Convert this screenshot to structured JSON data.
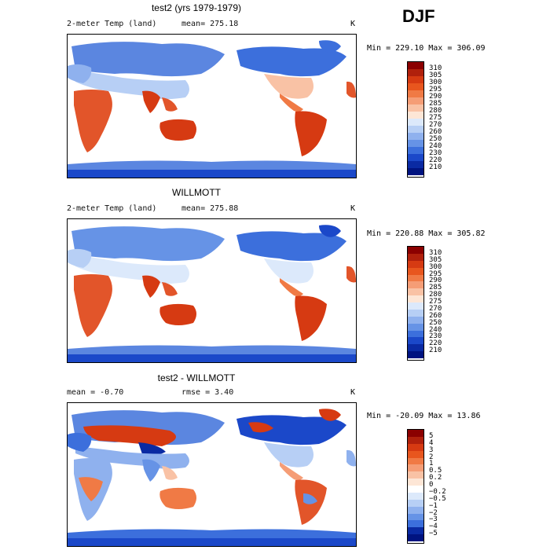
{
  "season": "DJF",
  "panels": [
    {
      "title": "test2 (yrs 1979-1979)",
      "subtitle_left": "2-meter Temp (land)",
      "subtitle_mid": "mean= 275.18",
      "unit": "K",
      "minmax": "Min = 229.10 Max = 306.09",
      "colorbar_labels": [
        "310",
        "305",
        "300",
        "295",
        "290",
        "285",
        "280",
        "275",
        "270",
        "260",
        "250",
        "240",
        "230",
        "220",
        "210"
      ],
      "colorbar_colors": [
        "#8b0000",
        "#b0200c",
        "#d63a12",
        "#e8561e",
        "#f07a45",
        "#f59d76",
        "#f9c2a5",
        "#fde6d6",
        "#dce9fb",
        "#b7cff5",
        "#8fb1ee",
        "#6693e6",
        "#3c6fdc",
        "#1b48c9",
        "#0a2aa3",
        "#001380"
      ]
    },
    {
      "title": "WILLMOTT",
      "subtitle_left": "2-meter Temp (land)",
      "subtitle_mid": "mean= 275.88",
      "unit": "K",
      "minmax": "Min = 220.88 Max = 305.82",
      "colorbar_labels": [
        "310",
        "305",
        "300",
        "295",
        "290",
        "285",
        "280",
        "275",
        "270",
        "260",
        "250",
        "240",
        "230",
        "220",
        "210"
      ],
      "colorbar_colors": [
        "#8b0000",
        "#b0200c",
        "#d63a12",
        "#e8561e",
        "#f07a45",
        "#f59d76",
        "#f9c2a5",
        "#fde6d6",
        "#dce9fb",
        "#b7cff5",
        "#8fb1ee",
        "#6693e6",
        "#3c6fdc",
        "#1b48c9",
        "#0a2aa3",
        "#001380"
      ]
    },
    {
      "title": "test2 - WILLMOTT",
      "subtitle_left": "mean =  -0.70",
      "subtitle_mid": "rmse =   3.40",
      "unit": "K",
      "minmax": "Min = -20.09 Max =  13.86",
      "colorbar_labels": [
        "5",
        "4",
        "3",
        "2",
        "1",
        "0.5",
        "0.2",
        "0",
        "−0.2",
        "−0.5",
        "−1",
        "−2",
        "−3",
        "−4",
        "−5"
      ],
      "colorbar_colors": [
        "#8b0000",
        "#b0200c",
        "#d63a12",
        "#e8561e",
        "#f07a45",
        "#f59d76",
        "#f9c2a5",
        "#fde6d6",
        "#ffffff",
        "#dce9fb",
        "#b7cff5",
        "#8fb1ee",
        "#6693e6",
        "#3c6fdc",
        "#0a2aa3",
        "#001380"
      ]
    }
  ],
  "colors": {
    "warm": "#e2552a",
    "hot": "#d63a12",
    "cool": "#5b86e0",
    "cold": "#1b48c9",
    "mild": "#f9c2a5"
  }
}
